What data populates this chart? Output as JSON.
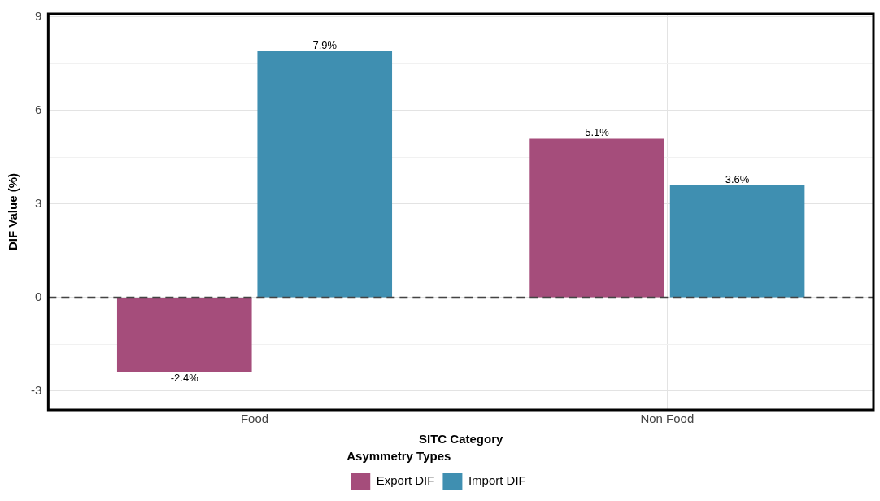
{
  "chart_data": {
    "type": "bar",
    "xlabel": "SITC Category",
    "ylabel": "DIF Value (%)",
    "legend_title": "Asymmetry Types",
    "categories": [
      "Food",
      "Non Food"
    ],
    "series": [
      {
        "name": "Export DIF",
        "color": "#a54d7b",
        "values": [
          -2.4,
          5.1
        ],
        "value_labels": [
          "-2.4%",
          "5.1%"
        ]
      },
      {
        "name": "Import DIF",
        "color": "#3f8fb1",
        "values": [
          7.9,
          3.6
        ],
        "value_labels": [
          "7.9%",
          "3.6%"
        ]
      }
    ],
    "ylim": [
      -3.6,
      9.1
    ],
    "yticks": [
      -3,
      {
        "value": -1.5,
        "label": null
      },
      0,
      {
        "value": 1.5,
        "label": null
      },
      3,
      {
        "value": 4.5,
        "label": null
      },
      6,
      {
        "value": 7.5,
        "label": null
      },
      9
    ],
    "ref_lines": [
      {
        "axis": "y",
        "value": 0,
        "color": "#444444",
        "line_style": "dashed"
      }
    ],
    "grid": true,
    "legend": "bottom"
  }
}
